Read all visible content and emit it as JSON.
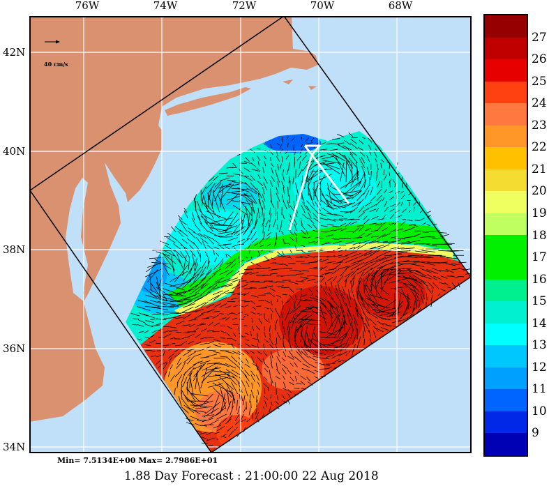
{
  "map": {
    "lon_labels": [
      "76W",
      "74W",
      "72W",
      "70W",
      "68W"
    ],
    "lat_labels": [
      "42N",
      "40N",
      "38N",
      "36N",
      "34N"
    ],
    "scale_vector_label": "40 cm/s",
    "land_color": "#d99170",
    "water_color": "#c0e0fa"
  },
  "colorbar": {
    "labels": [
      "27",
      "26",
      "25",
      "24",
      "23",
      "22",
      "21",
      "20",
      "19",
      "18",
      "17",
      "16",
      "15",
      "14",
      "13",
      "12",
      "11",
      "10",
      "9"
    ],
    "colors": [
      "#960000",
      "#c00000",
      "#e60000",
      "#ff4010",
      "#ff7840",
      "#ff9628",
      "#ffc000",
      "#f5dc30",
      "#f0ff60",
      "#c0ff60",
      "#00f000",
      "#00f000",
      "#00f090",
      "#00f0d0",
      "#00ffff",
      "#00c8ff",
      "#00a0ff",
      "#0064ff",
      "#0028e6",
      "#0000b4"
    ]
  },
  "stats": {
    "min_max": "Min= 7.5134E+00   Max= 2.7986E+01"
  },
  "title": "1.88 Day Forecast : 21:00:00   22 Aug 2018"
}
